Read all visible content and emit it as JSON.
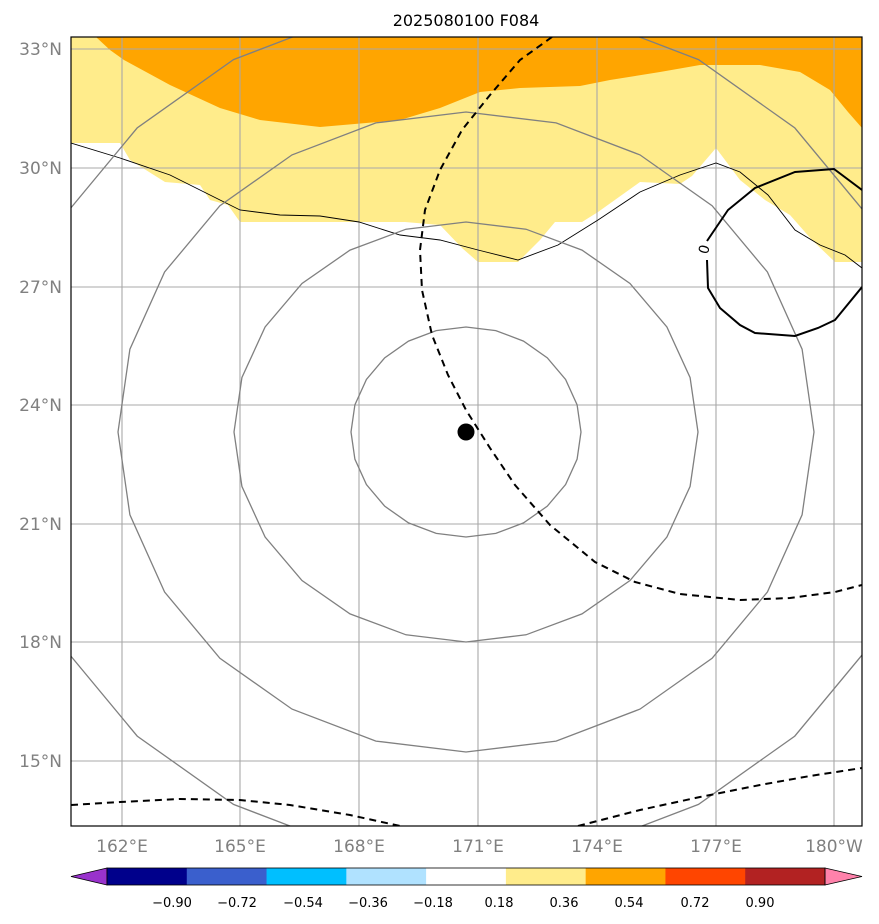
{
  "title": "2025080100 F084",
  "lat_labels": [
    "33°N",
    "30°N",
    "27°N",
    "24°N",
    "21°N",
    "18°N",
    "15°N"
  ],
  "lon_labels": [
    "162°E",
    "165°E",
    "168°E",
    "171°E",
    "174°E",
    "177°E",
    "180°W"
  ],
  "contour_label": "0",
  "colorbar": {
    "ticks": [
      "−0.90",
      "−0.72",
      "−0.54",
      "−0.36",
      "−0.18",
      "0.18",
      "0.36",
      "0.54",
      "0.72",
      "0.90"
    ],
    "colors": [
      "#9932cc",
      "#00008b",
      "#3a5fcd",
      "#00bfff",
      "#b0e2ff",
      "#ffffff",
      "#ffec8b",
      "#ffa500",
      "#ff4500",
      "#b22222",
      "#ff82ab"
    ]
  },
  "map": {
    "lat_range": [
      13.4,
      33.3
    ],
    "lon_range": [
      160.9,
      180.7
    ],
    "center_marker": {
      "lat": 23.3,
      "lon": 170.7
    }
  }
}
